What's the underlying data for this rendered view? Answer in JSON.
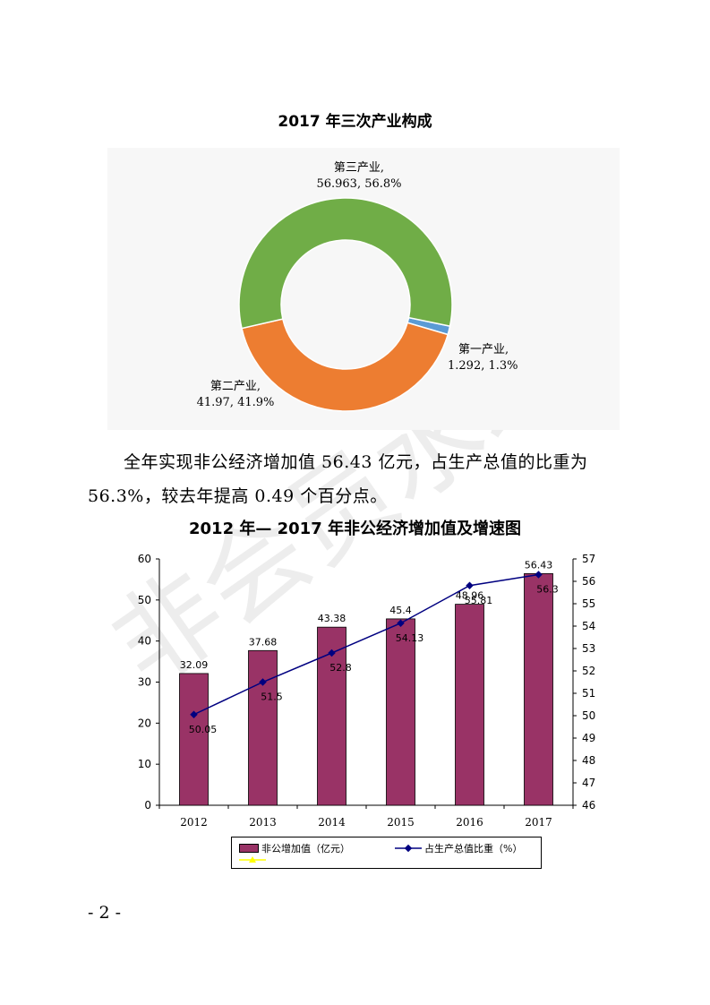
{
  "document": {
    "title1": "2017 年三次产业构成",
    "paragraph_line1": "全年实现非公经济增加值 56.43 亿元，占生产总值的比重为",
    "paragraph_line2": "56.3%，较去年提高 0.49 个百分点。",
    "title2": "2012 年— 2017 年非公经济增加值及增速图",
    "page_number": "- 2 -",
    "watermark": "非会员水印"
  },
  "chart_data": [
    {
      "type": "pie",
      "title": "2017 年三次产业构成",
      "slices": [
        {
          "name": "第一产业,",
          "value": 1.292,
          "percent": "1.3%",
          "label_text": "1.292, 1.3%",
          "color": "#5B9BD5"
        },
        {
          "name": "第二产业,",
          "value": 41.97,
          "percent": "41.9%",
          "label_text": "41.97, 41.9%",
          "color": "#ED7D31"
        },
        {
          "name": "第三产业,",
          "value": 56.963,
          "percent": "56.8%",
          "label_text": "56.963, 56.8%",
          "color": "#70AD47"
        }
      ],
      "style": "donut",
      "panel_background": "#F7F7F7"
    },
    {
      "type": "bar",
      "title": "2012 年— 2017 年非公经济增加值及增速图",
      "categories": [
        "2012",
        "2013",
        "2014",
        "2015",
        "2016",
        "2017"
      ],
      "series": [
        {
          "name": "非公增加值（亿元）",
          "kind": "bar",
          "axis": "left",
          "color": "#993366",
          "values": [
            32.09,
            37.68,
            43.38,
            45.4,
            48.96,
            56.43
          ],
          "labels": [
            "32.09",
            "37.68",
            "43.38",
            "45.4",
            "48.96",
            "56.43"
          ]
        },
        {
          "name": "占生产总值比重（%）",
          "kind": "line",
          "axis": "right",
          "color": "#000080",
          "values": [
            50.05,
            51.5,
            52.8,
            54.13,
            55.81,
            56.3
          ],
          "labels": [
            "50.05",
            "51.5",
            "52.8",
            "54.13",
            "55.81",
            "56.3"
          ]
        }
      ],
      "y_left": {
        "min": 0,
        "max": 60,
        "ticks": [
          "0",
          "10",
          "20",
          "30",
          "40",
          "50",
          "60"
        ]
      },
      "y_right": {
        "min": 46,
        "max": 57,
        "ticks": [
          "46",
          "47",
          "48",
          "49",
          "50",
          "51",
          "52",
          "53",
          "54",
          "55",
          "56",
          "57"
        ]
      },
      "grid": false,
      "legend": "bottom",
      "legend_extra_color": "#FFFF00"
    }
  ]
}
